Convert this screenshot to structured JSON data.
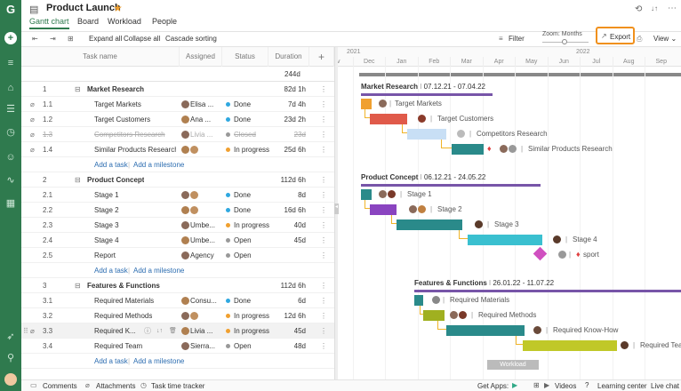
{
  "app": {
    "title": "Product Launch",
    "star": "★"
  },
  "tabs": [
    {
      "label": "Gantt chart",
      "active": true
    },
    {
      "label": "Board"
    },
    {
      "label": "Workload"
    },
    {
      "label": "People"
    }
  ],
  "toolbar": {
    "expand_all": "Expand all",
    "collapse_all": "Collapse all",
    "cascade": "Cascade sorting",
    "filter": "Filter",
    "zoom_label": "Zoom: Months",
    "export": "Export",
    "view": "View"
  },
  "columns": {
    "name": "Task name",
    "assigned": "Assigned",
    "status": "Status",
    "duration": "Duration"
  },
  "total_duration": "244d",
  "rows": [
    {
      "type": "group",
      "num": "1",
      "name": "Market Research",
      "duration": "82d 1h"
    },
    {
      "type": "task",
      "num": "1.1",
      "name": "Target Markets",
      "assigned": "Elisa ...",
      "status": "Done",
      "scolor": "#2fa8e0",
      "duration": "7d 4h",
      "clip": true
    },
    {
      "type": "task",
      "num": "1.2",
      "name": "Target Customers",
      "assigned": "Ana ...",
      "status": "Done",
      "scolor": "#2fa8e0",
      "duration": "23d 2h",
      "clip": true
    },
    {
      "type": "task",
      "num": "1.3",
      "name": "Competitors Research",
      "assigned": "Livia ...",
      "status": "Closed",
      "scolor": "#999",
      "duration": "23d",
      "clip": true,
      "strike": true
    },
    {
      "type": "task",
      "num": "1.4",
      "name": "Similar Products Research",
      "assigned": "",
      "status": "In progress",
      "scolor": "#f0a030",
      "duration": "25d 6h",
      "clip": true
    },
    {
      "type": "add",
      "add_task": "Add a task",
      "add_milestone": "Add a milestone"
    },
    {
      "type": "group",
      "num": "2",
      "name": "Product Concept",
      "duration": "112d 6h"
    },
    {
      "type": "task",
      "num": "2.1",
      "name": "Stage 1",
      "assigned": "",
      "status": "Done",
      "scolor": "#2fa8e0",
      "duration": "8d"
    },
    {
      "type": "task",
      "num": "2.2",
      "name": "Stage 2",
      "assigned": "",
      "status": "Done",
      "scolor": "#2fa8e0",
      "duration": "16d 6h"
    },
    {
      "type": "task",
      "num": "2.3",
      "name": "Stage 3",
      "assigned": "Umbe...",
      "status": "In progress",
      "scolor": "#f0a030",
      "duration": "40d"
    },
    {
      "type": "task",
      "num": "2.4",
      "name": "Stage 4",
      "assigned": "Umbe...",
      "status": "Open",
      "scolor": "#999",
      "duration": "45d"
    },
    {
      "type": "task",
      "num": "2.5",
      "name": "Report",
      "assigned": "Agency",
      "status": "Open",
      "scolor": "#999",
      "duration": ""
    },
    {
      "type": "add",
      "add_task": "Add a task",
      "add_milestone": "Add a milestone"
    },
    {
      "type": "group",
      "num": "3",
      "name": "Features & Functions",
      "duration": "112d 6h"
    },
    {
      "type": "task",
      "num": "3.1",
      "name": "Required Materials",
      "assigned": "Consu...",
      "status": "Done",
      "scolor": "#2fa8e0",
      "duration": "6d"
    },
    {
      "type": "task",
      "num": "3.2",
      "name": "Required Methods",
      "assigned": "",
      "status": "In progress",
      "scolor": "#f0a030",
      "duration": "12d 6h"
    },
    {
      "type": "task",
      "num": "3.3",
      "name": "Required K...",
      "assigned": "Livia ...",
      "status": "In progress",
      "scolor": "#f0a030",
      "duration": "45d",
      "highlight": true,
      "clip": true
    },
    {
      "type": "task",
      "num": "3.4",
      "name": "Required Team",
      "assigned": "Sierra...",
      "status": "Open",
      "scolor": "#999",
      "duration": "48d"
    },
    {
      "type": "add",
      "add_task": "Add a task",
      "add_milestone": "Add a milestone"
    }
  ],
  "timeline": {
    "years": [
      "2021",
      "2022"
    ],
    "months": [
      "ov",
      "Dec",
      "Jan",
      "Feb",
      "Mar",
      "Apr",
      "May",
      "Jun",
      "Jul",
      "Aug",
      "Sep"
    ]
  },
  "groups": [
    {
      "name": "Market Research",
      "dates": "07.12.21 - 07.04.22"
    },
    {
      "name": "Product Concept",
      "dates": "06.12.21 - 24.05.22"
    },
    {
      "name": "Features & Functions",
      "dates": "26.01.22 - 11.07.22"
    }
  ],
  "bar_labels": {
    "t11": "Target Markets",
    "t12": "Target Customers",
    "t13": "Competitors Research",
    "t14": "Similar Products Research",
    "t21": "Stage 1",
    "t22": "Stage 2",
    "t23": "Stage 3",
    "t24": "Stage 4",
    "t25": "sport",
    "t31": "Required Materials",
    "t32": "Required Methods",
    "t33": "Required Know-How",
    "t34": "Required Team"
  },
  "workload_btn": "Workload",
  "footer": {
    "comments": "Comments",
    "attachments": "Attachments",
    "tracker": "Task time tracker",
    "get_apps": "Get Apps:",
    "videos": "Videos",
    "learning": "Learning center",
    "live_chat": "Live chat"
  }
}
